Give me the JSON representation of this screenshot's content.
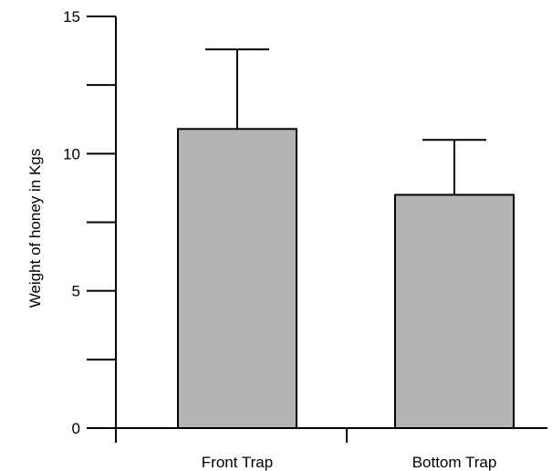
{
  "chart_data": {
    "type": "bar",
    "categories": [
      "Front Trap",
      "Bottom Trap"
    ],
    "values": [
      10.9,
      8.5
    ],
    "error_upper": [
      13.8,
      10.5
    ],
    "xlabel": "",
    "ylabel": "Weight of honey in Kgs",
    "ylim": [
      0,
      15
    ],
    "yticks": [
      0,
      5,
      10,
      15
    ],
    "yticks_minor": [
      2.5,
      7.5,
      12.5
    ],
    "grid": false,
    "legend": "none",
    "colors": {
      "bar_fill": "#b3b3b3",
      "bar_stroke": "#000000",
      "axis": "#000000"
    }
  }
}
